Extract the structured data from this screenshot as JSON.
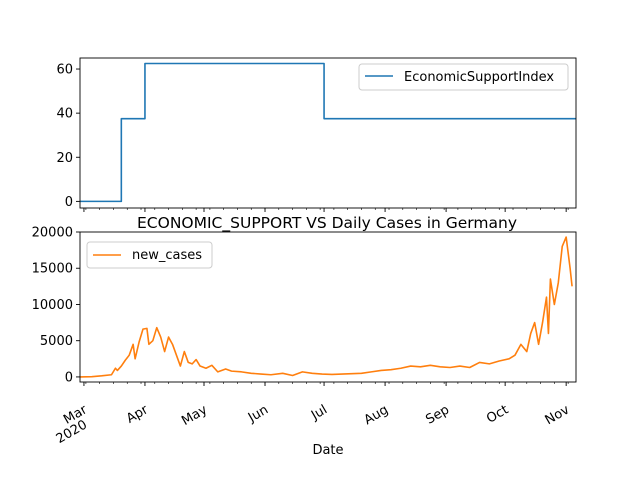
{
  "figure": {
    "title": "ECONOMIC_SUPPORT VS Daily Cases in Germany",
    "xlabel": "Date"
  },
  "chart_data": [
    {
      "type": "line",
      "ylim": [
        -3,
        65
      ],
      "yticks": [
        0,
        20,
        40,
        60
      ],
      "xlim": [
        "2020-02-28",
        "2020-11-06"
      ],
      "legend_position": "top-right",
      "series": [
        {
          "name": "EconomicSupportIndex",
          "color": "#1f77b4",
          "points": [
            [
              "2020-02-28",
              0
            ],
            [
              "2020-03-20",
              0
            ],
            [
              "2020-03-20",
              37.5
            ],
            [
              "2020-04-01",
              37.5
            ],
            [
              "2020-04-01",
              62.5
            ],
            [
              "2020-07-01",
              62.5
            ],
            [
              "2020-07-01",
              37.5
            ],
            [
              "2020-11-06",
              37.5
            ]
          ]
        }
      ]
    },
    {
      "type": "line",
      "ylim": [
        -700,
        20000
      ],
      "yticks": [
        0,
        5000,
        10000,
        15000,
        20000
      ],
      "xlim": [
        "2020-02-28",
        "2020-11-06"
      ],
      "legend_position": "top-left",
      "series": [
        {
          "name": "new_cases",
          "color": "#ff7f0e",
          "points": [
            [
              "2020-02-28",
              0
            ],
            [
              "2020-03-05",
              30
            ],
            [
              "2020-03-10",
              150
            ],
            [
              "2020-03-15",
              300
            ],
            [
              "2020-03-17",
              1200
            ],
            [
              "2020-03-18",
              900
            ],
            [
              "2020-03-20",
              1500
            ],
            [
              "2020-03-22",
              2300
            ],
            [
              "2020-03-24",
              3000
            ],
            [
              "2020-03-26",
              4500
            ],
            [
              "2020-03-27",
              2500
            ],
            [
              "2020-03-29",
              4800
            ],
            [
              "2020-03-31",
              6600
            ],
            [
              "2020-04-02",
              6700
            ],
            [
              "2020-04-03",
              4500
            ],
            [
              "2020-04-05",
              5000
            ],
            [
              "2020-04-07",
              6800
            ],
            [
              "2020-04-09",
              5500
            ],
            [
              "2020-04-11",
              3500
            ],
            [
              "2020-04-13",
              5500
            ],
            [
              "2020-04-15",
              4500
            ],
            [
              "2020-04-17",
              3000
            ],
            [
              "2020-04-19",
              1500
            ],
            [
              "2020-04-21",
              3500
            ],
            [
              "2020-04-23",
              2000
            ],
            [
              "2020-04-25",
              1800
            ],
            [
              "2020-04-27",
              2400
            ],
            [
              "2020-04-29",
              1500
            ],
            [
              "2020-05-02",
              1200
            ],
            [
              "2020-05-05",
              1600
            ],
            [
              "2020-05-08",
              700
            ],
            [
              "2020-05-12",
              1100
            ],
            [
              "2020-05-15",
              800
            ],
            [
              "2020-05-20",
              700
            ],
            [
              "2020-05-25",
              500
            ],
            [
              "2020-05-30",
              400
            ],
            [
              "2020-06-04",
              300
            ],
            [
              "2020-06-10",
              500
            ],
            [
              "2020-06-15",
              200
            ],
            [
              "2020-06-20",
              700
            ],
            [
              "2020-06-25",
              500
            ],
            [
              "2020-06-30",
              400
            ],
            [
              "2020-07-05",
              350
            ],
            [
              "2020-07-10",
              400
            ],
            [
              "2020-07-15",
              450
            ],
            [
              "2020-07-20",
              500
            ],
            [
              "2020-07-25",
              700
            ],
            [
              "2020-07-30",
              900
            ],
            [
              "2020-08-04",
              1000
            ],
            [
              "2020-08-09",
              1200
            ],
            [
              "2020-08-14",
              1500
            ],
            [
              "2020-08-19",
              1400
            ],
            [
              "2020-08-24",
              1600
            ],
            [
              "2020-08-29",
              1400
            ],
            [
              "2020-09-03",
              1300
            ],
            [
              "2020-09-08",
              1500
            ],
            [
              "2020-09-13",
              1300
            ],
            [
              "2020-09-18",
              2000
            ],
            [
              "2020-09-23",
              1800
            ],
            [
              "2020-09-28",
              2200
            ],
            [
              "2020-10-03",
              2500
            ],
            [
              "2020-10-06",
              3000
            ],
            [
              "2020-10-09",
              4500
            ],
            [
              "2020-10-12",
              3500
            ],
            [
              "2020-10-14",
              6000
            ],
            [
              "2020-10-16",
              7500
            ],
            [
              "2020-10-18",
              4500
            ],
            [
              "2020-10-20",
              7500
            ],
            [
              "2020-10-22",
              11000
            ],
            [
              "2020-10-23",
              6000
            ],
            [
              "2020-10-24",
              13500
            ],
            [
              "2020-10-26",
              10000
            ],
            [
              "2020-10-28",
              13000
            ],
            [
              "2020-10-30",
              18000
            ],
            [
              "2020-11-01",
              19300
            ],
            [
              "2020-11-03",
              15000
            ],
            [
              "2020-11-04",
              12500
            ]
          ]
        }
      ]
    }
  ],
  "xaxis": {
    "ticks": [
      {
        "date": "2020-03-01",
        "label": "Mar",
        "sublabel": "2020"
      },
      {
        "date": "2020-04-01",
        "label": "Apr"
      },
      {
        "date": "2020-05-01",
        "label": "May"
      },
      {
        "date": "2020-06-01",
        "label": "Jun"
      },
      {
        "date": "2020-07-01",
        "label": "Jul"
      },
      {
        "date": "2020-08-01",
        "label": "Aug"
      },
      {
        "date": "2020-09-01",
        "label": "Sep"
      },
      {
        "date": "2020-10-01",
        "label": "Oct"
      },
      {
        "date": "2020-11-01",
        "label": "Nov"
      }
    ]
  }
}
